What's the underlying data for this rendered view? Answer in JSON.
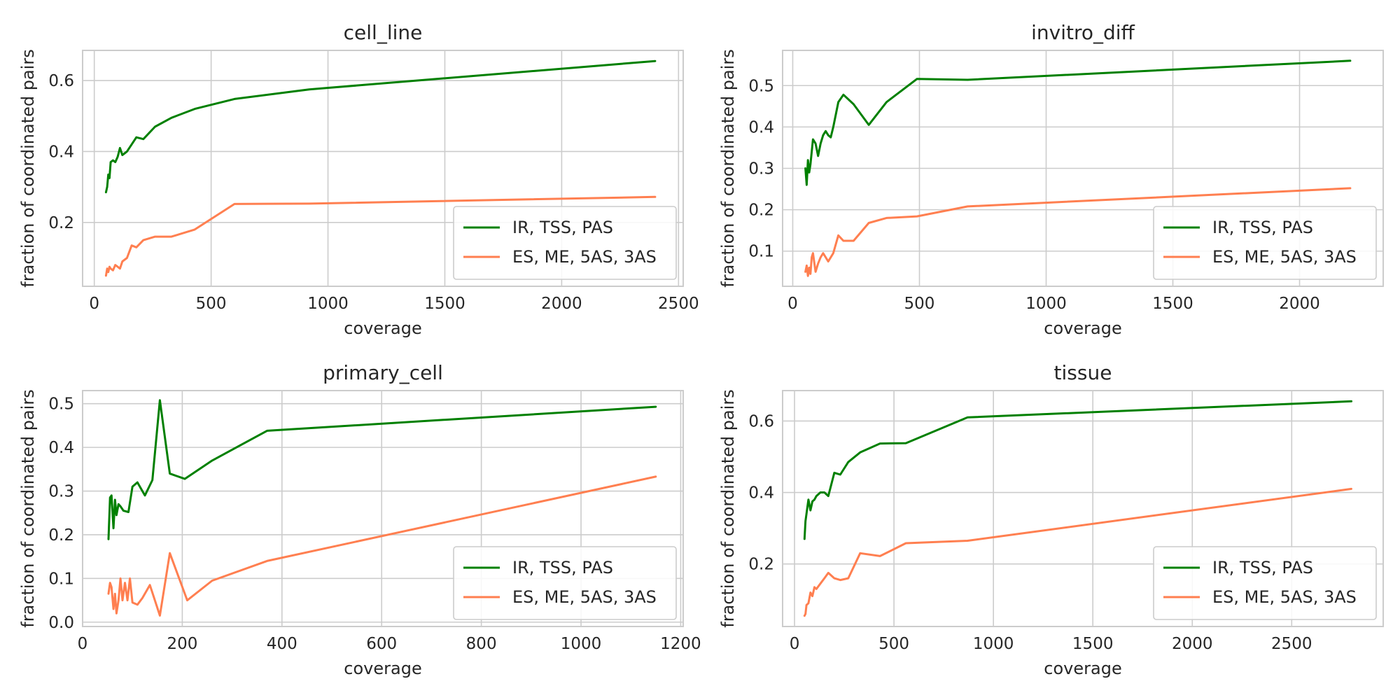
{
  "colors": {
    "green": "#008000",
    "orange": "#ff7f50"
  },
  "chart_data": [
    {
      "type": "line",
      "title": "cell_line",
      "xlabel": "coverage",
      "ylabel": "fraction of coordinated pairs",
      "xlim": [
        -50,
        2520
      ],
      "ylim": [
        0.02,
        0.685
      ],
      "xticks": [
        0,
        500,
        1000,
        1500,
        2000,
        2500
      ],
      "yticks": [
        0.2,
        0.4,
        0.6
      ],
      "ytick_labels": [
        "0.2",
        "0.4",
        "0.6"
      ],
      "grid": true,
      "legend_position": "lower right",
      "series": [
        {
          "name": "IR, TSS, PAS",
          "color": "#008000",
          "x": [
            50,
            55,
            60,
            65,
            70,
            80,
            90,
            100,
            110,
            120,
            130,
            140,
            160,
            180,
            210,
            260,
            330,
            430,
            600,
            920,
            2400
          ],
          "y": [
            0.285,
            0.3,
            0.335,
            0.325,
            0.37,
            0.375,
            0.37,
            0.385,
            0.41,
            0.39,
            0.395,
            0.4,
            0.42,
            0.44,
            0.435,
            0.47,
            0.495,
            0.52,
            0.548,
            0.575,
            0.655
          ]
        },
        {
          "name": "ES, ME, 5AS, 3AS",
          "color": "#ff7f50",
          "x": [
            50,
            55,
            60,
            65,
            70,
            80,
            90,
            100,
            110,
            120,
            140,
            160,
            180,
            210,
            260,
            330,
            430,
            600,
            920,
            2400
          ],
          "y": [
            0.05,
            0.07,
            0.06,
            0.075,
            0.07,
            0.065,
            0.08,
            0.075,
            0.07,
            0.09,
            0.1,
            0.135,
            0.13,
            0.15,
            0.16,
            0.16,
            0.18,
            0.252,
            0.253,
            0.272
          ]
        }
      ]
    },
    {
      "type": "line",
      "title": "invitro_diff",
      "xlabel": "coverage",
      "ylabel": "fraction of coordinated pairs",
      "xlim": [
        -40,
        2330
      ],
      "ylim": [
        0.015,
        0.585
      ],
      "xticks": [
        0,
        500,
        1000,
        1500,
        2000
      ],
      "yticks": [
        0.1,
        0.2,
        0.3,
        0.4,
        0.5
      ],
      "ytick_labels": [
        "0.1",
        "0.2",
        "0.3",
        "0.4",
        "0.5"
      ],
      "grid": true,
      "legend_position": "lower right",
      "series": [
        {
          "name": "IR, TSS, PAS",
          "color": "#008000",
          "x": [
            50,
            55,
            60,
            65,
            70,
            80,
            90,
            100,
            110,
            120,
            130,
            140,
            150,
            160,
            180,
            200,
            240,
            300,
            370,
            490,
            690,
            2200
          ],
          "y": [
            0.3,
            0.26,
            0.32,
            0.29,
            0.31,
            0.37,
            0.36,
            0.33,
            0.36,
            0.38,
            0.39,
            0.38,
            0.375,
            0.4,
            0.46,
            0.478,
            0.455,
            0.405,
            0.46,
            0.516,
            0.514,
            0.56
          ]
        },
        {
          "name": "ES, ME, 5AS, 3AS",
          "color": "#ff7f50",
          "x": [
            50,
            55,
            60,
            65,
            70,
            75,
            80,
            90,
            100,
            110,
            120,
            140,
            160,
            180,
            200,
            240,
            300,
            370,
            490,
            690,
            2200
          ],
          "y": [
            0.05,
            0.065,
            0.04,
            0.06,
            0.045,
            0.085,
            0.095,
            0.05,
            0.07,
            0.085,
            0.095,
            0.075,
            0.095,
            0.138,
            0.125,
            0.125,
            0.168,
            0.18,
            0.184,
            0.208,
            0.252
          ]
        }
      ]
    },
    {
      "type": "line",
      "title": "primary_cell",
      "xlabel": "coverage",
      "ylabel": "fraction of coordinated pairs",
      "xlim": [
        0,
        1205
      ],
      "ylim": [
        -0.01,
        0.53
      ],
      "xticks": [
        0,
        200,
        400,
        600,
        800,
        1000,
        1200
      ],
      "yticks": [
        0.0,
        0.1,
        0.2,
        0.3,
        0.4,
        0.5
      ],
      "ytick_labels": [
        "0.0",
        "0.1",
        "0.2",
        "0.3",
        "0.4",
        "0.5"
      ],
      "grid": true,
      "legend_position": "lower right",
      "series": [
        {
          "name": "IR, TSS, PAS",
          "color": "#008000",
          "x": [
            52,
            55,
            58,
            62,
            65,
            68,
            72,
            76,
            82,
            92,
            100,
            110,
            125,
            140,
            155,
            175,
            205,
            260,
            370,
            1150
          ],
          "y": [
            0.19,
            0.285,
            0.29,
            0.215,
            0.28,
            0.245,
            0.27,
            0.265,
            0.255,
            0.252,
            0.31,
            0.32,
            0.29,
            0.325,
            0.508,
            0.34,
            0.328,
            0.37,
            0.438,
            0.493
          ]
        },
        {
          "name": "ES, ME, 5AS, 3AS",
          "color": "#ff7f50",
          "x": [
            52,
            55,
            58,
            62,
            65,
            68,
            72,
            76,
            80,
            85,
            90,
            95,
            100,
            110,
            120,
            135,
            155,
            175,
            210,
            260,
            370,
            1150
          ],
          "y": [
            0.065,
            0.09,
            0.08,
            0.03,
            0.065,
            0.02,
            0.05,
            0.1,
            0.05,
            0.09,
            0.05,
            0.1,
            0.045,
            0.04,
            0.055,
            0.085,
            0.015,
            0.158,
            0.05,
            0.095,
            0.14,
            0.333
          ]
        }
      ]
    },
    {
      "type": "line",
      "title": "tissue",
      "xlabel": "coverage",
      "ylabel": "fraction of coordinated pairs",
      "xlim": [
        -60,
        2960
      ],
      "ylim": [
        0.025,
        0.685
      ],
      "xticks": [
        0,
        500,
        1000,
        1500,
        2000,
        2500
      ],
      "yticks": [
        0.2,
        0.4,
        0.6
      ],
      "ytick_labels": [
        "0.2",
        "0.4",
        "0.6"
      ],
      "grid": true,
      "legend_position": "lower right",
      "series": [
        {
          "name": "IR, TSS, PAS",
          "color": "#008000",
          "x": [
            50,
            55,
            60,
            70,
            80,
            90,
            100,
            110,
            130,
            150,
            170,
            200,
            230,
            270,
            330,
            430,
            560,
            870,
            2800
          ],
          "y": [
            0.27,
            0.32,
            0.34,
            0.38,
            0.35,
            0.375,
            0.38,
            0.39,
            0.4,
            0.4,
            0.39,
            0.455,
            0.45,
            0.485,
            0.512,
            0.537,
            0.538,
            0.61,
            0.655
          ]
        },
        {
          "name": "ES, ME, 5AS, 3AS",
          "color": "#ff7f50",
          "x": [
            50,
            55,
            60,
            70,
            80,
            90,
            100,
            110,
            130,
            150,
            170,
            200,
            230,
            270,
            330,
            430,
            560,
            870,
            2800
          ],
          "y": [
            0.055,
            0.06,
            0.085,
            0.09,
            0.12,
            0.11,
            0.135,
            0.13,
            0.145,
            0.16,
            0.175,
            0.16,
            0.155,
            0.16,
            0.23,
            0.222,
            0.258,
            0.265,
            0.41
          ]
        }
      ]
    }
  ]
}
